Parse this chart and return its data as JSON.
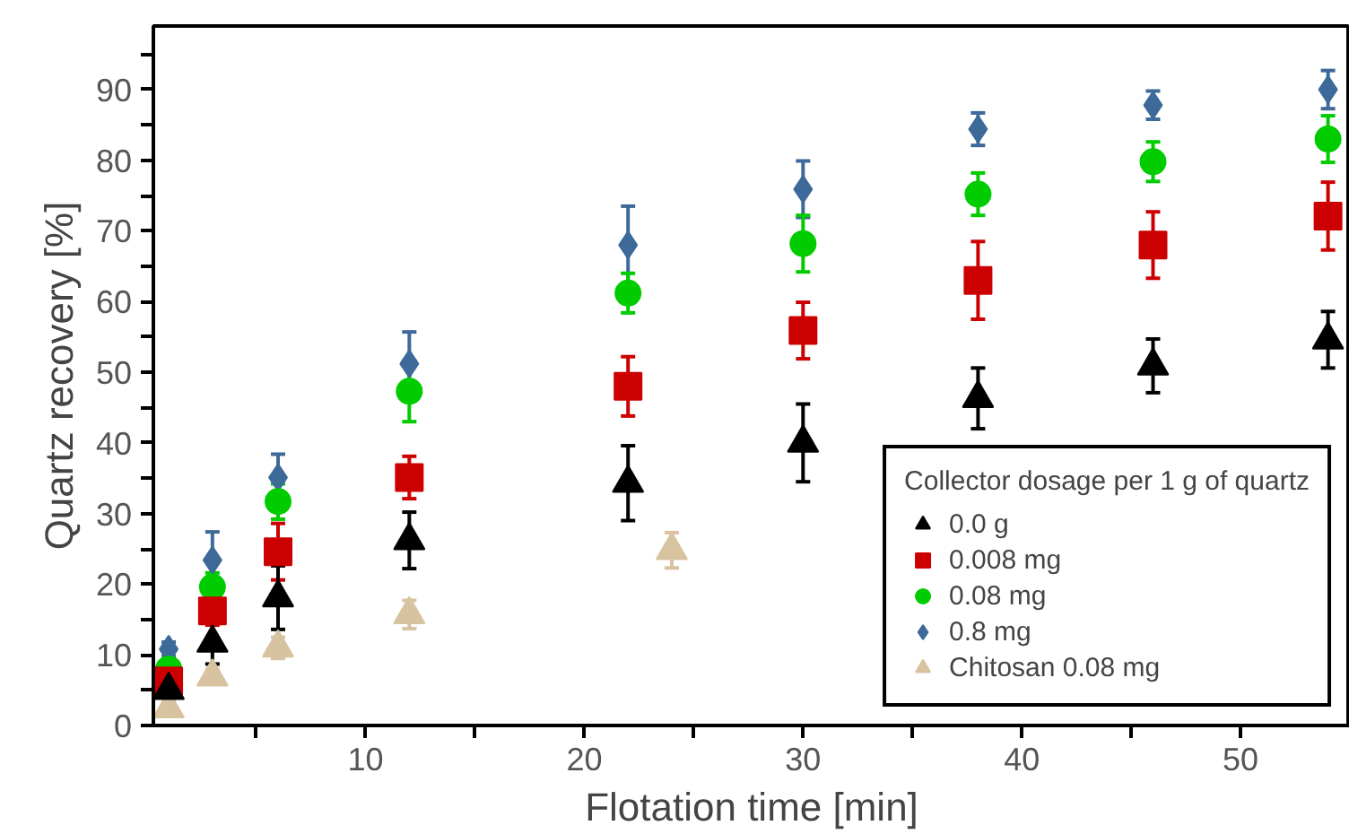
{
  "chart_data": {
    "type": "scatter",
    "xlabel": "Flotation time [min]",
    "ylabel": "Quartz recovery [%]",
    "legend_title": "Collector dosage per 1 g of quartz",
    "xlim": [
      0.3,
      55
    ],
    "ylim": [
      0,
      99
    ],
    "xticks": [
      {
        "value": 5,
        "label": null
      },
      10,
      {
        "value": 15,
        "label": null
      },
      20,
      {
        "value": 25,
        "label": null
      },
      30,
      {
        "value": 35,
        "label": null
      },
      40,
      {
        "value": 45,
        "label": null
      },
      50
    ],
    "yticks": [
      0,
      {
        "value": 5,
        "label": null
      },
      10,
      {
        "value": 15,
        "label": null
      },
      20,
      {
        "value": 25,
        "label": null
      },
      30,
      {
        "value": 35,
        "label": null
      },
      40,
      {
        "value": 45,
        "label": null
      },
      50,
      {
        "value": 55,
        "label": null
      },
      60,
      {
        "value": 65,
        "label": null
      },
      70,
      {
        "value": 75,
        "label": null
      },
      80,
      {
        "value": 85,
        "label": null
      },
      90,
      {
        "value": 95,
        "label": null
      }
    ],
    "grid": false,
    "legend": "bottom right",
    "series": [
      {
        "name": "0.0 g",
        "color": "#000000",
        "marker": "triangle",
        "x": [
          1,
          3,
          6,
          12,
          22,
          30,
          38,
          46,
          54
        ],
        "values": [
          5.0,
          11.7,
          18.1,
          26.2,
          34.3,
          40.0,
          46.3,
          50.9,
          54.6
        ],
        "errors": [
          1,
          3,
          4.5,
          4,
          5.3,
          5.5,
          4.3,
          3.8,
          4
        ]
      },
      {
        "name": "0.008 mg",
        "color": "#cc0000",
        "marker": "square",
        "x": [
          1,
          3,
          6,
          12,
          22,
          30,
          38,
          46,
          54
        ],
        "values": [
          6.3,
          16.2,
          24.6,
          35.1,
          48.0,
          55.9,
          63.0,
          68.0,
          72.1
        ],
        "errors": [
          1.5,
          2,
          4,
          3,
          4.2,
          4,
          5.5,
          4.7,
          4.8
        ]
      },
      {
        "name": "0.08 mg",
        "color": "#00cc00",
        "marker": "circle",
        "x": [
          1,
          3,
          6,
          12,
          22,
          30,
          38,
          46,
          54
        ],
        "values": [
          8.0,
          19.6,
          31.7,
          47.3,
          61.2,
          68.2,
          75.2,
          79.8,
          83.0
        ],
        "errors": [
          1,
          2,
          2.5,
          4.3,
          2.8,
          4,
          3,
          2.8,
          3.3
        ]
      },
      {
        "name": "0.8 mg",
        "color": "#3d6a99",
        "marker": "diamond",
        "x": [
          1,
          3,
          6,
          12,
          22,
          30,
          38,
          46,
          54
        ],
        "values": [
          10.8,
          23.4,
          35.1,
          51.2,
          68.0,
          75.9,
          84.4,
          87.8,
          90.0
        ],
        "errors": [
          1,
          4,
          3.3,
          4.5,
          5.5,
          4,
          2.3,
          2,
          2.7
        ]
      },
      {
        "name": "Chitosan 0.08 mg",
        "color": "#d8c3a0",
        "marker": "triangle",
        "x": [
          1,
          3,
          6,
          12,
          24
        ],
        "values": [
          2.4,
          6.9,
          11.0,
          15.7,
          24.8
        ],
        "errors": [
          1,
          1,
          1.5,
          2,
          2.5
        ]
      }
    ]
  }
}
